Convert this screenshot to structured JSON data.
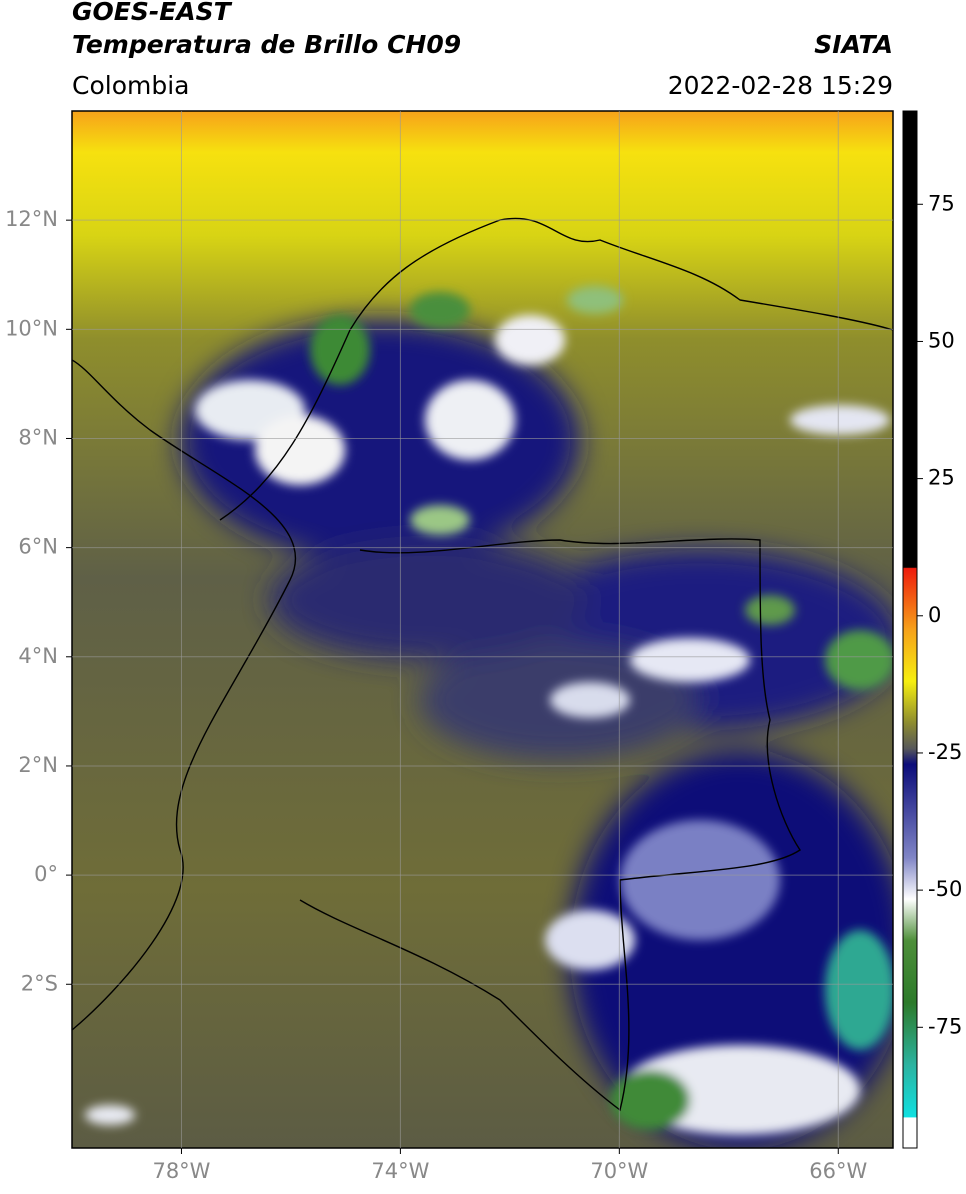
{
  "header": {
    "title": "GOES-EAST",
    "subtitle": "Temperatura de Brillo CH09",
    "source": "SIATA",
    "region": "Colombia",
    "timestamp": "2022-02-28 15:29"
  },
  "map": {
    "xlim": [
      -80,
      -65
    ],
    "ylim": [
      -5,
      14
    ],
    "xticks": [
      {
        "value": -78,
        "label": "78°W"
      },
      {
        "value": -74,
        "label": "74°W"
      },
      {
        "value": -70,
        "label": "70°W"
      },
      {
        "value": -66,
        "label": "66°W"
      }
    ],
    "yticks": [
      {
        "value": 12,
        "label": "12°N"
      },
      {
        "value": 10,
        "label": "10°N"
      },
      {
        "value": 8,
        "label": "8°N"
      },
      {
        "value": 6,
        "label": "6°N"
      },
      {
        "value": 4,
        "label": "4°N"
      },
      {
        "value": 2,
        "label": "2°N"
      },
      {
        "value": 0,
        "label": "0°"
      },
      {
        "value": -2,
        "label": "2°S"
      }
    ],
    "grid": true
  },
  "colorbar": {
    "lim": [
      -97,
      92
    ],
    "ticks": [
      75,
      50,
      25,
      0,
      -25,
      -50,
      -75
    ]
  }
}
